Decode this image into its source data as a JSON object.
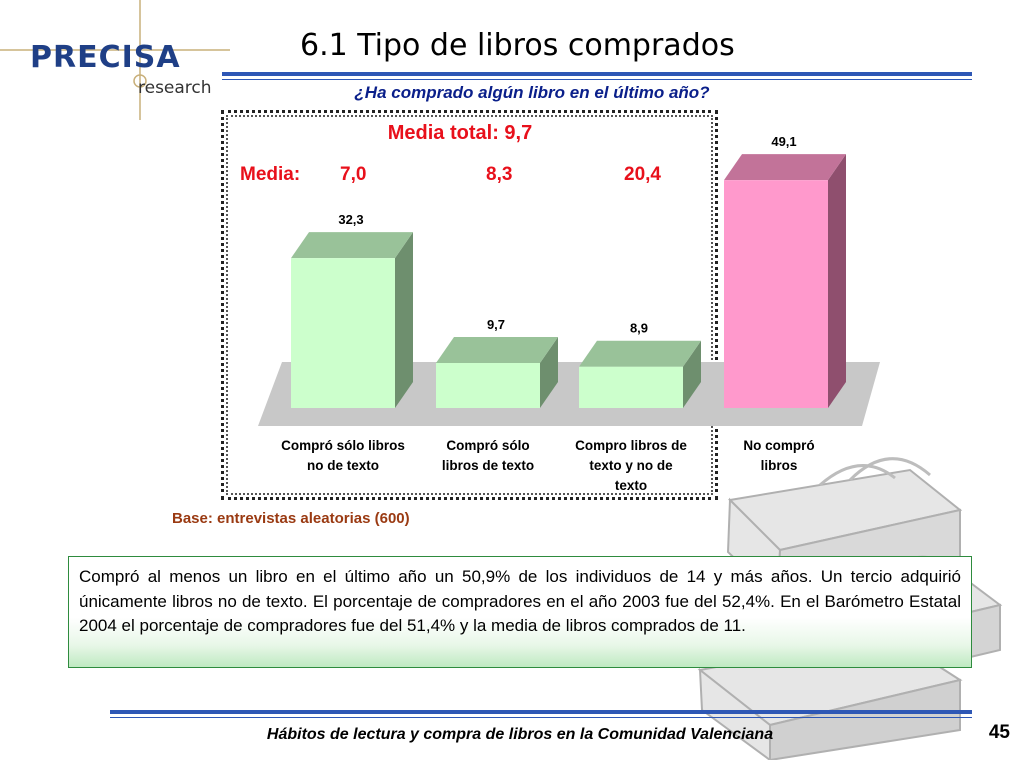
{
  "logo": {
    "word": "PRECISA",
    "sub": "research"
  },
  "title": "6.1 Tipo de libros comprados",
  "question": "¿Ha comprado algún libro en el último año?",
  "media_total": "Media total: 9,7",
  "media_row": {
    "label": "Media:",
    "values": [
      "7,0",
      "8,3",
      "20,4"
    ]
  },
  "chart_data": {
    "type": "bar",
    "title": "",
    "categories": [
      "Compró sólo libros no de texto",
      "Compró sólo libros de texto",
      "Compro libros de texto y no de texto",
      "No compró libros"
    ],
    "category_lines": [
      [
        "Compró sólo libros",
        "no de texto"
      ],
      [
        "Compró sólo",
        "libros de texto"
      ],
      [
        "Compro libros de",
        "texto y no de",
        "texto"
      ],
      [
        "No compró",
        "libros"
      ]
    ],
    "values": [
      32.3,
      9.7,
      8.9,
      49.1
    ],
    "value_labels": [
      "32,3",
      "9,7",
      "8,9",
      "49,1"
    ],
    "bar_colors": [
      "#ccffcc",
      "#ccffcc",
      "#ccffcc",
      "#ff99cc"
    ],
    "bar_shade_colors": [
      "#99c299",
      "#99c299",
      "#99c299",
      "#c27399"
    ],
    "bar_side_colors": [
      "#6e8f6e",
      "#6e8f6e",
      "#6e8f6e",
      "#8f4f6e"
    ],
    "floor_color": "#c8c8c8",
    "ylim": [
      0,
      52
    ],
    "grid": false,
    "xlabel": "",
    "ylabel": ""
  },
  "base_note": "Base: entrevistas aleatorias (600)",
  "summary": "Compró al menos un libro en el último año un 50,9% de los individuos de 14 y más años. Un tercio adquirió únicamente libros no de texto. El porcentaje de compradores en el año 2003 fue del 52,4%. En el Barómetro Estatal 2004 el porcentaje de compradores fue del 51,4% y la media de libros comprados de 11.",
  "footer": "Hábitos de lectura y compra de libros en la Comunidad Valenciana",
  "page_number": "45",
  "colors": {
    "accent_blue": "#2e57b5",
    "media_red": "#e8101b",
    "note_brown": "#9a3a12",
    "box_border": "#2e8b3e"
  }
}
